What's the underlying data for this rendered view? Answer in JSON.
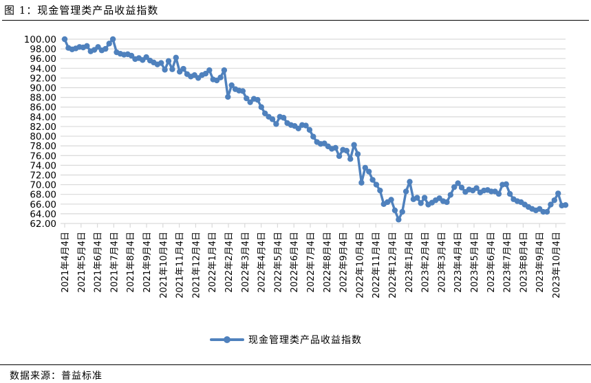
{
  "figure": {
    "title": "图 1：现金管理类产品收益指数",
    "source": "数据来源：普益标准"
  },
  "legend": {
    "label": "现金管理类产品收益指数",
    "color": "#4f81bd"
  },
  "chart_data": {
    "type": "line",
    "title": "现金管理类产品收益指数",
    "xlabel": "",
    "ylabel": "",
    "ylim": [
      62,
      100
    ],
    "y_ticks": [
      "100.00",
      "98.00",
      "96.00",
      "94.00",
      "92.00",
      "90.00",
      "88.00",
      "86.00",
      "84.00",
      "82.00",
      "80.00",
      "78.00",
      "76.00",
      "74.00",
      "72.00",
      "70.00",
      "68.00",
      "66.00",
      "64.00",
      "62.00"
    ],
    "x_tick_labels": [
      "2021年4月4日",
      "2021年5月4日",
      "2021年6月4日",
      "2021年7月4日",
      "2021年8月4日",
      "2021年9月4日",
      "2021年10月4日",
      "2021年11月4日",
      "2021年12月4日",
      "2022年1月4日",
      "2022年2月4日",
      "2022年3月4日",
      "2022年4月4日",
      "2022年5月4日",
      "2022年6月4日",
      "2022年7月4日",
      "2022年8月4日",
      "2022年9月4日",
      "2022年10月4日",
      "2022年11月4日",
      "2022年12月4日",
      "2023年1月4日",
      "2023年2月4日",
      "2023年3月4日",
      "2023年4月4日",
      "2023年5月4日",
      "2023年6月4日",
      "2023年7月4日",
      "2023年8月4日",
      "2023年9月4日",
      "2023年10月4日"
    ],
    "grid": true,
    "legend_position": "bottom",
    "series": [
      {
        "name": "现金管理类产品收益指数",
        "color": "#4f81bd",
        "values": [
          100.0,
          98.2,
          97.9,
          98.1,
          98.4,
          98.3,
          98.6,
          97.5,
          97.8,
          98.4,
          97.7,
          98.0,
          99.1,
          100.0,
          97.3,
          97.0,
          96.8,
          96.9,
          96.6,
          95.9,
          96.1,
          95.7,
          96.3,
          95.6,
          95.2,
          94.8,
          95.1,
          93.7,
          95.5,
          93.8,
          96.2,
          93.3,
          93.9,
          92.8,
          92.3,
          92.6,
          92.0,
          92.6,
          92.9,
          93.6,
          91.7,
          91.5,
          92.1,
          93.6,
          88.1,
          90.5,
          89.7,
          89.4,
          89.3,
          87.8,
          87.0,
          87.7,
          87.5,
          86.0,
          84.7,
          84.0,
          83.5,
          82.5,
          84.0,
          83.8,
          82.7,
          82.3,
          82.1,
          81.6,
          82.3,
          82.2,
          81.3,
          79.9,
          78.8,
          78.4,
          78.5,
          77.9,
          77.4,
          77.6,
          75.9,
          77.2,
          77.0,
          75.3,
          78.2,
          76.3,
          70.4,
          73.5,
          72.7,
          71.0,
          70.0,
          68.8,
          66.0,
          66.4,
          66.9,
          64.7,
          62.8,
          64.4,
          68.6,
          70.6,
          67.0,
          67.3,
          66.2,
          67.3,
          65.9,
          66.3,
          66.8,
          67.2,
          66.6,
          66.4,
          67.9,
          69.5,
          70.3,
          69.4,
          68.5,
          69.0,
          68.8,
          69.3,
          68.4,
          68.8,
          68.9,
          68.6,
          68.6,
          68.1,
          70.0,
          70.1,
          68.1,
          67.0,
          66.6,
          66.4,
          65.9,
          65.4,
          65.0,
          64.7,
          65.0,
          64.4,
          64.4,
          65.9,
          66.8,
          68.2,
          65.7,
          65.8
        ]
      }
    ]
  }
}
